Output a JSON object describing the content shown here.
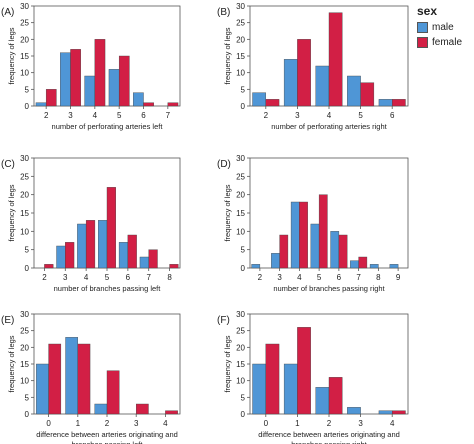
{
  "legend": {
    "title": "sex",
    "items": [
      {
        "label": "male",
        "color": "#4f96d6"
      },
      {
        "label": "female",
        "color": "#d21f45"
      }
    ]
  },
  "chart_data": [
    {
      "type": "bar",
      "panel_label": "(A)",
      "xlabel": [
        "number of perforating arteries left"
      ],
      "ylabel": "frequency of legs",
      "ylim": [
        0,
        30
      ],
      "yticks": [
        0,
        5,
        10,
        15,
        20,
        25,
        30
      ],
      "grid": false,
      "categories": [
        "2",
        "3",
        "4",
        "5",
        "6",
        "7"
      ],
      "series": [
        {
          "name": "male",
          "values": [
            1,
            16,
            9,
            11,
            4,
            0
          ]
        },
        {
          "name": "female",
          "values": [
            5,
            17,
            20,
            15,
            1,
            1
          ]
        }
      ]
    },
    {
      "type": "bar",
      "panel_label": "(B)",
      "xlabel": [
        "number of perforating arteries right"
      ],
      "ylabel": "frequency of legs",
      "ylim": [
        0,
        30
      ],
      "yticks": [
        0,
        5,
        10,
        15,
        20,
        25,
        30
      ],
      "grid": false,
      "categories": [
        "2",
        "3",
        "4",
        "5",
        "6"
      ],
      "series": [
        {
          "name": "male",
          "values": [
            4,
            14,
            12,
            9,
            2
          ]
        },
        {
          "name": "female",
          "values": [
            2,
            20,
            28,
            7,
            2
          ]
        }
      ]
    },
    {
      "type": "bar",
      "panel_label": "(C)",
      "xlabel": [
        "number of branches passing left"
      ],
      "ylabel": "frequency of legs",
      "ylim": [
        0,
        30
      ],
      "yticks": [
        0,
        5,
        10,
        15,
        20,
        25,
        30
      ],
      "grid": false,
      "categories": [
        "2",
        "3",
        "4",
        "5",
        "6",
        "7",
        "8"
      ],
      "series": [
        {
          "name": "male",
          "values": [
            0,
            6,
            12,
            13,
            7,
            3,
            0
          ]
        },
        {
          "name": "female",
          "values": [
            1,
            7,
            13,
            22,
            9,
            5,
            1
          ]
        }
      ]
    },
    {
      "type": "bar",
      "panel_label": "(D)",
      "xlabel": [
        "number of branches passing right"
      ],
      "ylabel": "frequency of legs",
      "ylim": [
        0,
        30
      ],
      "yticks": [
        0,
        5,
        10,
        15,
        20,
        25,
        30
      ],
      "grid": false,
      "categories": [
        "2",
        "3",
        "4",
        "5",
        "6",
        "7",
        "8",
        "9"
      ],
      "series": [
        {
          "name": "male",
          "values": [
            1,
            4,
            18,
            12,
            10,
            2,
            1,
            1
          ]
        },
        {
          "name": "female",
          "values": [
            0,
            9,
            18,
            20,
            9,
            3,
            0,
            0
          ]
        }
      ]
    },
    {
      "type": "bar",
      "panel_label": "(E)",
      "xlabel": [
        "difference between arteries originating and",
        "branches passing left"
      ],
      "ylabel": "frequency of legs",
      "ylim": [
        0,
        30
      ],
      "yticks": [
        0,
        5,
        10,
        15,
        20,
        25,
        30
      ],
      "grid": false,
      "categories": [
        "0",
        "1",
        "2",
        "3",
        "4"
      ],
      "series": [
        {
          "name": "male",
          "values": [
            15,
            23,
            3,
            0,
            0
          ]
        },
        {
          "name": "female",
          "values": [
            21,
            21,
            13,
            3,
            1
          ]
        }
      ]
    },
    {
      "type": "bar",
      "panel_label": "(F)",
      "xlabel": [
        "difference between arteries originating and",
        "branches passing right"
      ],
      "ylabel": "frequency of legs",
      "ylim": [
        0,
        30
      ],
      "yticks": [
        0,
        5,
        10,
        15,
        20,
        25,
        30
      ],
      "grid": false,
      "categories": [
        "0",
        "1",
        "2",
        "3",
        "4"
      ],
      "series": [
        {
          "name": "male",
          "values": [
            15,
            15,
            8,
            2,
            1
          ]
        },
        {
          "name": "female",
          "values": [
            21,
            26,
            11,
            0,
            1
          ]
        }
      ]
    }
  ]
}
